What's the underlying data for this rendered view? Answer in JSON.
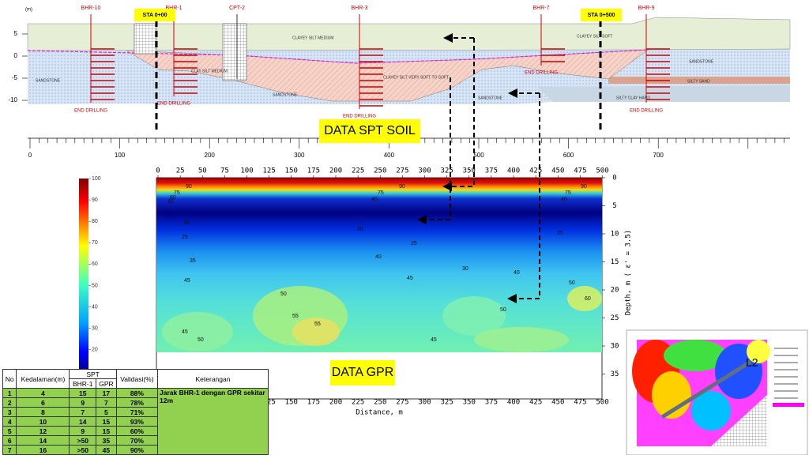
{
  "cross_section": {
    "unit": "(m)",
    "elevation_ticks": [
      5,
      0,
      -5,
      -10
    ],
    "distance_ticks": [
      0,
      100,
      200,
      300,
      400,
      500,
      600,
      700
    ],
    "boreholes": [
      {
        "label": "BHR-10",
        "end": "END DRILLING"
      },
      {
        "label": "BHR-1",
        "end": "END DRILLING"
      },
      {
        "label": "CPT-2"
      },
      {
        "label": "BHR-3",
        "end": "END DRILLING"
      },
      {
        "label": "BHR-7",
        "end": "END DRILLING"
      },
      {
        "label": "BHR-9",
        "end": "END DRILLING"
      }
    ],
    "layers": [
      "CLAYEY SILT MEDIUM",
      "CLAYEY SILT SOFT",
      "SANDSTONE",
      "CLAY SILT MEDIUM",
      "CLAYEY SILT VERY SOFT TO SOFT",
      "SANDSTONE",
      "SANDSTONE",
      "SANDSTONE",
      "SILTY SAND",
      "SILTY CLAY HARD"
    ],
    "stations": [
      "STA 0+00",
      "STA 0+500"
    ],
    "caption": "DATA SPT SOIL"
  },
  "gpr": {
    "x_ticks": [
      0,
      25,
      50,
      75,
      100,
      125,
      150,
      175,
      200,
      225,
      250,
      275,
      300,
      325,
      350,
      375,
      400,
      425,
      450,
      475,
      500
    ],
    "depth_ticks": [
      0,
      5,
      10,
      15,
      20,
      25,
      30,
      35
    ],
    "x_label": "Distance, m",
    "y_label": "Depth, m ( ε' = 3.5)",
    "colorbar_ticks": [
      100,
      90,
      80,
      70,
      60,
      50,
      40,
      30,
      20
    ],
    "contour_labels": [
      "90",
      "75",
      "60",
      "40",
      "90",
      "75",
      "40",
      "90",
      "75",
      "40",
      "30",
      "20",
      "25",
      "25",
      "25",
      "35",
      "40",
      "30",
      "40",
      "45",
      "45",
      "50",
      "55",
      "55",
      "50",
      "45",
      "50",
      "45",
      "50",
      "60"
    ],
    "caption": "DATA GPR"
  },
  "table": {
    "headers": {
      "no": "No",
      "depth": "Kedalaman(m)",
      "spt": "SPT",
      "bhr": "BHR-1",
      "gpr": "GPR",
      "validation": "Validasi(%)",
      "note": "Keterangan"
    },
    "rows": [
      [
        "1",
        "4",
        "15",
        "17",
        "88%"
      ],
      [
        "2",
        "6",
        "9",
        "7",
        "78%"
      ],
      [
        "3",
        "8",
        "7",
        "5",
        "71%"
      ],
      [
        "4",
        "10",
        "14",
        "15",
        "93%"
      ],
      [
        "5",
        "12",
        "9",
        "15",
        "60%"
      ],
      [
        "6",
        "14",
        ">50",
        "35",
        "70%"
      ],
      [
        "7",
        "16",
        ">50",
        "45",
        "90%"
      ]
    ],
    "note": "Jarak BHR-1 dengan GPR sekitar 12m"
  },
  "inset": {
    "label": "L2"
  }
}
